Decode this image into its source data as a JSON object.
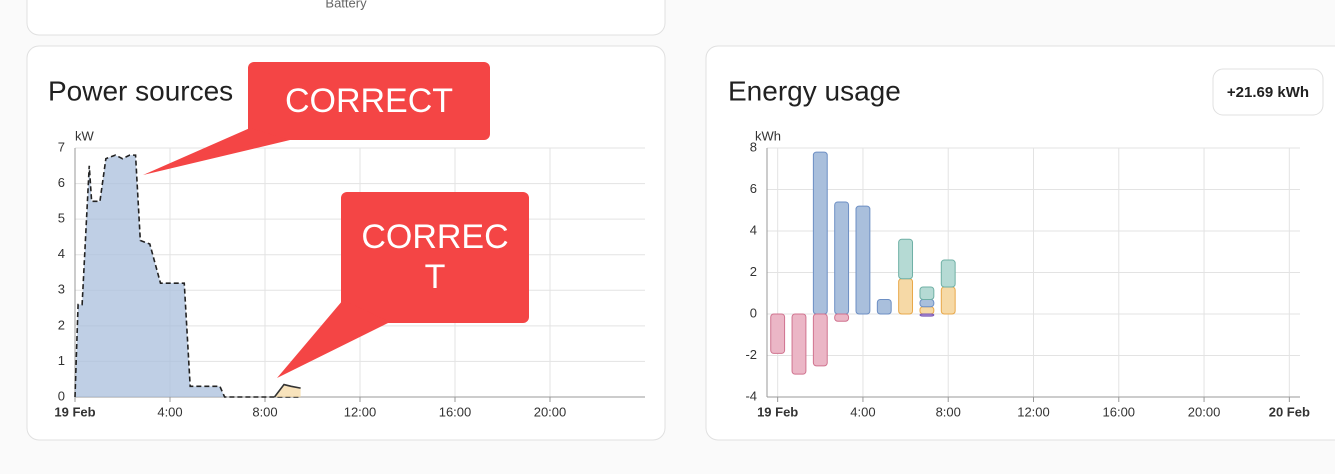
{
  "top_card": {
    "label": "Battery"
  },
  "annotations": [
    "CORRECT",
    "CORRECT"
  ],
  "chart_data": [
    {
      "type": "area",
      "title": "Power sources",
      "y_label": "kW",
      "grid": true,
      "x": [
        0,
        0.13,
        0.3,
        0.6,
        0.7,
        1.05,
        1.3,
        1.7,
        2.0,
        2.3,
        2.55,
        2.75,
        3.15,
        3.6,
        4.6,
        4.85,
        6.1,
        6.3,
        8.4,
        8.8,
        9.1,
        9.5
      ],
      "xlim": [
        0,
        24
      ],
      "xticks": [
        {
          "value": 0,
          "label": "19 Feb"
        },
        {
          "value": 4,
          "label": "4:00"
        },
        {
          "value": 8,
          "label": "8:00"
        },
        {
          "value": 12,
          "label": "12:00"
        },
        {
          "value": 16,
          "label": "16:00"
        },
        {
          "value": 20,
          "label": "20:00"
        }
      ],
      "ylim": [
        0,
        7
      ],
      "yticks": [
        0,
        1,
        2,
        3,
        4,
        5,
        6,
        7
      ],
      "series": [
        {
          "color": "#a9bfdc",
          "line_color": "#222222",
          "line_style": "dashed",
          "values": [
            0,
            2.6,
            2.6,
            6.5,
            5.5,
            5.5,
            6.7,
            6.8,
            6.7,
            6.8,
            6.8,
            4.4,
            4.3,
            3.2,
            3.2,
            0.3,
            0.3,
            0,
            0,
            0,
            0,
            0
          ]
        },
        {
          "color": "#f6d9a6",
          "line_color": "#333333",
          "line_style": "solid",
          "values": [
            null,
            null,
            null,
            null,
            null,
            null,
            null,
            null,
            null,
            null,
            null,
            null,
            null,
            null,
            null,
            null,
            null,
            null,
            0,
            0.35,
            0.3,
            0.25
          ]
        }
      ]
    },
    {
      "type": "bar",
      "title": "Energy usage",
      "badge": "+21.69 kWh",
      "y_label": "kWh",
      "grid": true,
      "stacked": true,
      "x": [
        0,
        1,
        2,
        3,
        4,
        5,
        6,
        7,
        8
      ],
      "xlim": [
        -0.5,
        24.5
      ],
      "xticks": [
        {
          "value": 0,
          "label": "19 Feb"
        },
        {
          "value": 4,
          "label": "4:00"
        },
        {
          "value": 8,
          "label": "8:00"
        },
        {
          "value": 12,
          "label": "12:00"
        },
        {
          "value": 16,
          "label": "16:00"
        },
        {
          "value": 20,
          "label": "20:00"
        },
        {
          "value": 24,
          "label": "20 Feb"
        }
      ],
      "ylim": [
        -4,
        8
      ],
      "yticks": [
        -4,
        -2,
        0,
        2,
        4,
        6,
        8
      ],
      "series": [
        {
          "color": "#f6d9a6",
          "line_color": "#e8a84a",
          "values": [
            null,
            null,
            null,
            null,
            null,
            null,
            1.7,
            0.35,
            1.3
          ]
        },
        {
          "color": "#a9bfdc",
          "line_color": "#6d8fc4",
          "values": [
            null,
            null,
            7.8,
            5.4,
            5.2,
            0.7,
            null,
            0.35,
            null
          ]
        },
        {
          "color": "#b5dad4",
          "line_color": "#6fb0a5",
          "values": [
            null,
            null,
            null,
            null,
            null,
            null,
            1.9,
            0.6,
            1.3
          ]
        },
        {
          "color": "#ebb6c6",
          "line_color": "#d0738f",
          "values": [
            -1.9,
            -2.9,
            -2.5,
            -0.35,
            null,
            null,
            null,
            null,
            null
          ]
        },
        {
          "color": "#a98cd4",
          "line_color": "#7a58b4",
          "values": [
            null,
            null,
            null,
            null,
            null,
            null,
            null,
            -0.1,
            null
          ]
        }
      ]
    }
  ]
}
